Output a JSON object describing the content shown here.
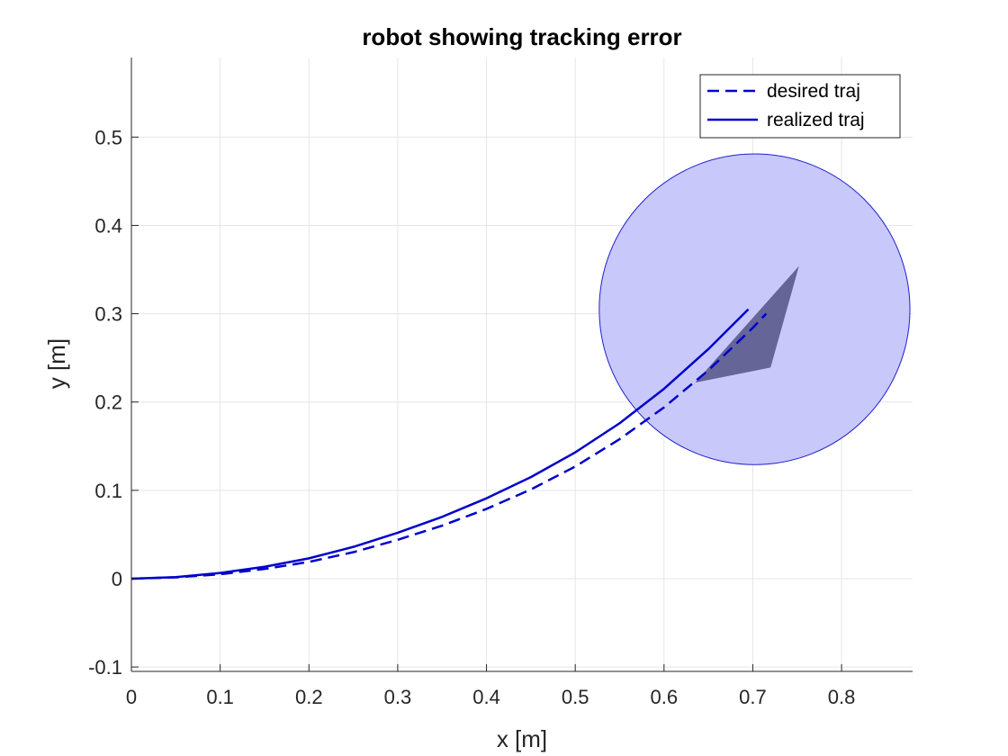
{
  "chart_data": {
    "type": "line",
    "title": "robot showing tracking error",
    "xlabel": "x [m]",
    "ylabel": "y [m]",
    "xlim": [
      0,
      0.88
    ],
    "ylim": [
      -0.105,
      0.59
    ],
    "xticks": [
      0,
      0.1,
      0.2,
      0.3,
      0.4,
      0.5,
      0.6,
      0.7,
      0.8
    ],
    "xtick_labels": [
      "0",
      "0.1",
      "0.2",
      "0.3",
      "0.4",
      "0.5",
      "0.6",
      "0.7",
      "0.8"
    ],
    "yticks": [
      -0.1,
      0,
      0.1,
      0.2,
      0.3,
      0.4,
      0.5
    ],
    "ytick_labels": [
      "-0.1",
      "0",
      "0.1",
      "0.2",
      "0.3",
      "0.4",
      "0.5"
    ],
    "grid": true,
    "legend_position": "top-right",
    "series": [
      {
        "name": "desired traj",
        "style": "dashed",
        "color": "#0000cc",
        "x": [
          0,
          0.05,
          0.1,
          0.15,
          0.2,
          0.25,
          0.3,
          0.35,
          0.4,
          0.45,
          0.5,
          0.55,
          0.6,
          0.65,
          0.7,
          0.715
        ],
        "y": [
          0,
          0.0015,
          0.005,
          0.011,
          0.019,
          0.03,
          0.044,
          0.06,
          0.079,
          0.101,
          0.127,
          0.158,
          0.194,
          0.236,
          0.284,
          0.3
        ]
      },
      {
        "name": "realized traj",
        "style": "solid",
        "color": "#0000cc",
        "x": [
          0,
          0.05,
          0.1,
          0.15,
          0.2,
          0.25,
          0.3,
          0.35,
          0.4,
          0.45,
          0.5,
          0.55,
          0.6,
          0.65,
          0.695
        ],
        "y": [
          0,
          0.0017,
          0.0065,
          0.0135,
          0.023,
          0.036,
          0.052,
          0.07,
          0.091,
          0.115,
          0.143,
          0.176,
          0.215,
          0.26,
          0.305
        ]
      }
    ],
    "robot": {
      "circle": {
        "cx": 0.702,
        "cy": 0.305,
        "r": 0.175,
        "fill": "#c8c8fa",
        "stroke": "#2020d0"
      },
      "triangle": {
        "points": [
          [
            0.635,
            0.222
          ],
          [
            0.752,
            0.354
          ],
          [
            0.72,
            0.239
          ]
        ],
        "fill": "#5a5a8c"
      }
    }
  }
}
